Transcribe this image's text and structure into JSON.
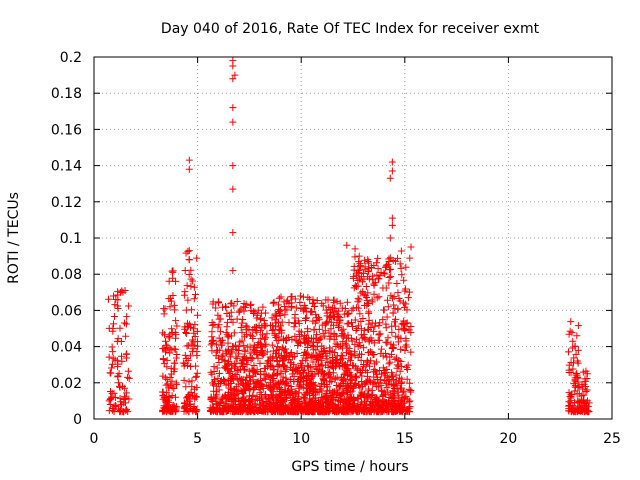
{
  "chart_data": {
    "type": "scatter",
    "title": "Day 040 of 2016, Rate Of TEC Index for receiver exmt",
    "xlabel": "GPS time / hours",
    "ylabel": "ROTI / TECUs",
    "xlim": [
      0,
      25
    ],
    "ylim": [
      0,
      0.2
    ],
    "xticks": [
      "0",
      "5",
      "10",
      "15",
      "20",
      "25"
    ],
    "yticks": [
      "0",
      "0.02",
      "0.04",
      "0.06",
      "0.08",
      "0.1",
      "0.12",
      "0.14",
      "0.16",
      "0.18",
      "0.2"
    ],
    "grid": true,
    "marker": "plus",
    "color": "#ff0000",
    "clusters": [
      {
        "x": [
          0.7,
          1.7
        ],
        "y_max": 0.072,
        "density": 90
      },
      {
        "x": [
          3.3,
          4.0
        ],
        "y_max": 0.082,
        "density": 130
      },
      {
        "x": [
          4.3,
          5.0
        ],
        "y_max": 0.094,
        "density": 110
      },
      {
        "x": [
          5.6,
          7.0
        ],
        "y_max": 0.065,
        "density": 260
      },
      {
        "x": [
          7.0,
          8.5
        ],
        "y_max": 0.064,
        "density": 300
      },
      {
        "x": [
          8.5,
          10.5
        ],
        "y_max": 0.068,
        "density": 520
      },
      {
        "x": [
          10.5,
          12.5
        ],
        "y_max": 0.066,
        "density": 520
      },
      {
        "x": [
          12.5,
          14.6
        ],
        "y_max": 0.09,
        "density": 480
      },
      {
        "x": [
          14.6,
          15.3
        ],
        "y_max": 0.095,
        "density": 120
      },
      {
        "x": [
          22.9,
          23.4
        ],
        "y_max": 0.055,
        "density": 80
      },
      {
        "x": [
          23.4,
          23.9
        ],
        "y_max": 0.027,
        "density": 60
      }
    ],
    "outliers": [
      {
        "x": 1.4,
        "y": 0.07
      },
      {
        "x": 1.5,
        "y": 0.071
      },
      {
        "x": 3.8,
        "y": 0.081
      },
      {
        "x": 4.6,
        "y": 0.088
      },
      {
        "x": 4.6,
        "y": 0.093
      },
      {
        "x": 4.6,
        "y": 0.138
      },
      {
        "x": 4.6,
        "y": 0.143
      },
      {
        "x": 6.7,
        "y": 0.082
      },
      {
        "x": 6.7,
        "y": 0.103
      },
      {
        "x": 6.7,
        "y": 0.127
      },
      {
        "x": 6.7,
        "y": 0.14
      },
      {
        "x": 6.7,
        "y": 0.164
      },
      {
        "x": 6.7,
        "y": 0.172
      },
      {
        "x": 6.7,
        "y": 0.188
      },
      {
        "x": 6.8,
        "y": 0.19
      },
      {
        "x": 6.7,
        "y": 0.195
      },
      {
        "x": 6.7,
        "y": 0.198
      },
      {
        "x": 12.2,
        "y": 0.096
      },
      {
        "x": 12.6,
        "y": 0.094
      },
      {
        "x": 12.8,
        "y": 0.09
      },
      {
        "x": 14.3,
        "y": 0.1
      },
      {
        "x": 14.4,
        "y": 0.107
      },
      {
        "x": 14.4,
        "y": 0.111
      },
      {
        "x": 14.3,
        "y": 0.133
      },
      {
        "x": 14.4,
        "y": 0.137
      },
      {
        "x": 14.4,
        "y": 0.142
      },
      {
        "x": 15.3,
        "y": 0.095
      }
    ]
  }
}
